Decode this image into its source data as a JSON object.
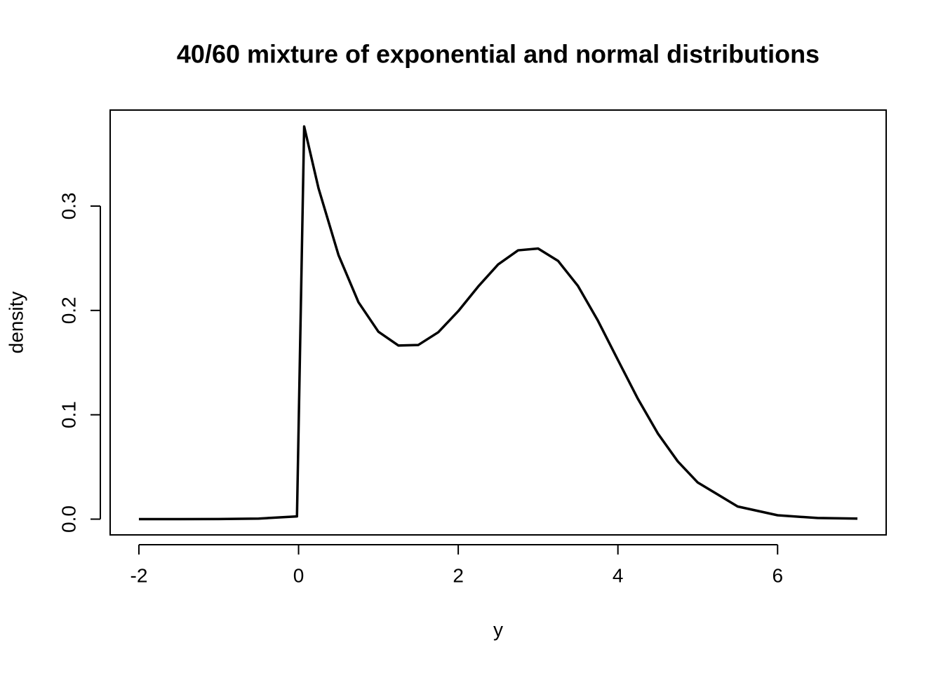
{
  "chart_data": {
    "type": "line",
    "title": "40/60 mixture of exponential and normal distributions",
    "x_label": "y",
    "y_label": "density",
    "x": [
      -2,
      -1.5,
      -1,
      -0.5,
      -0.02,
      0.07,
      0.25,
      0.5,
      0.75,
      1,
      1.25,
      1.5,
      1.75,
      2,
      2.25,
      2.5,
      2.75,
      3,
      3.25,
      3.5,
      3.75,
      4,
      4.25,
      4.5,
      4.75,
      5,
      5.5,
      6,
      6.5,
      7
    ],
    "values": [
      0,
      1e-05,
      8e-05,
      0.00052,
      0.0026,
      0.3763,
      0.317,
      0.2531,
      0.2079,
      0.1796,
      0.1664,
      0.1669,
      0.1791,
      0.1993,
      0.2229,
      0.2441,
      0.2576,
      0.2593,
      0.2475,
      0.2234,
      0.1901,
      0.1525,
      0.1153,
      0.0821,
      0.0553,
      0.0351,
      0.0121,
      0.0037,
      0.0011,
      0.0005
    ],
    "color": "#000000",
    "xlim": [
      -2.36,
      7.36
    ],
    "ylim": [
      -0.0151,
      0.392
    ],
    "xticks": [
      -2,
      0,
      2,
      4,
      6
    ],
    "yticks": [
      {
        "value": 0,
        "label": "0.0"
      },
      0.1,
      0.2,
      0.3
    ],
    "grid": false
  }
}
